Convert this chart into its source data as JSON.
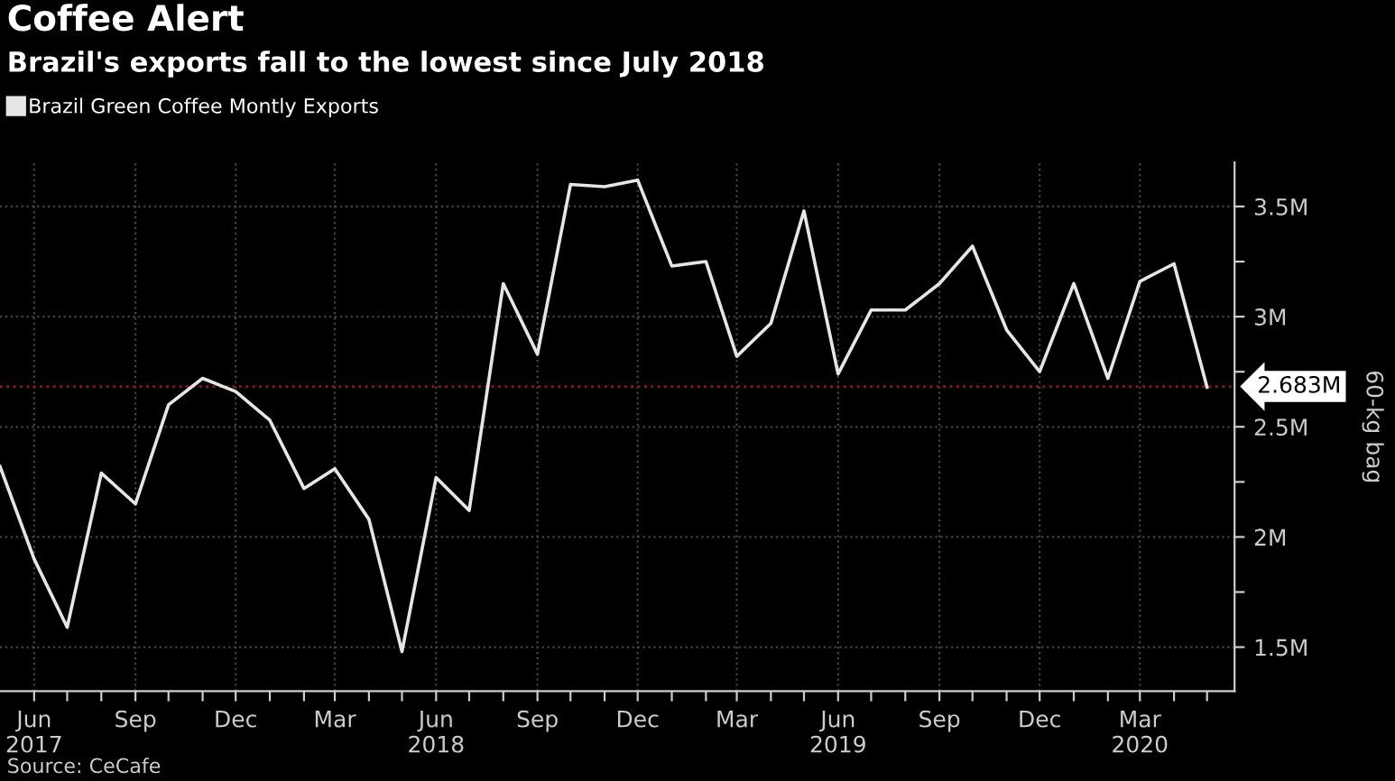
{
  "chart_data": {
    "type": "line",
    "title": "Coffee Alert",
    "subtitle": "Brazil's exports fall to the lowest since July 2018",
    "ylabel": "60-kg bag",
    "annotations": [
      "Source: CeCafe"
    ],
    "x": [
      "2017-05-01",
      "2017-06-01",
      "2017-07-01",
      "2017-08-01",
      "2017-09-01",
      "2017-10-01",
      "2017-11-01",
      "2017-12-01",
      "2018-01-01",
      "2018-02-01",
      "2018-03-01",
      "2018-04-01",
      "2018-05-01",
      "2018-06-01",
      "2018-07-01",
      "2018-08-01",
      "2018-09-01",
      "2018-10-01",
      "2018-11-01",
      "2018-12-01",
      "2019-01-01",
      "2019-02-01",
      "2019-03-01",
      "2019-04-01",
      "2019-05-01",
      "2019-06-01",
      "2019-07-01",
      "2019-08-01",
      "2019-09-01",
      "2019-10-01",
      "2019-11-01",
      "2019-12-01",
      "2020-01-01",
      "2020-02-01",
      "2020-03-01",
      "2020-04-01",
      "2020-05-01"
    ],
    "series": [
      {
        "name": "Brazil Green Coffee Montly Exports",
        "color": "#e6e6e6",
        "values": [
          2.32,
          1.9,
          1.59,
          2.29,
          2.15,
          2.6,
          2.72,
          2.66,
          2.53,
          2.22,
          2.31,
          2.08,
          1.48,
          2.27,
          2.12,
          3.15,
          2.83,
          3.6,
          3.59,
          3.62,
          3.23,
          3.25,
          2.82,
          2.97,
          3.48,
          2.74,
          3.03,
          3.03,
          3.15,
          3.32,
          2.94,
          2.75,
          3.15,
          2.72,
          3.16,
          3.24,
          2.68
        ]
      }
    ],
    "xlim": [
      "2017-05-01",
      "2020-05-26"
    ],
    "xticks": [
      {
        "value": "2017-06-01",
        "label": "Jun\n2017"
      },
      {
        "value": "2017-07-01",
        "label": null
      },
      {
        "value": "2017-08-01",
        "label": null
      },
      {
        "value": "2017-09-01",
        "label": "Sep"
      },
      {
        "value": "2017-10-01",
        "label": null
      },
      {
        "value": "2017-11-01",
        "label": null
      },
      {
        "value": "2017-12-01",
        "label": "Dec"
      },
      {
        "value": "2018-01-01",
        "label": null
      },
      {
        "value": "2018-02-01",
        "label": null
      },
      {
        "value": "2018-03-01",
        "label": "Mar"
      },
      {
        "value": "2018-04-01",
        "label": null
      },
      {
        "value": "2018-05-01",
        "label": null
      },
      {
        "value": "2018-06-01",
        "label": "Jun\n2018"
      },
      {
        "value": "2018-07-01",
        "label": null
      },
      {
        "value": "2018-08-01",
        "label": null
      },
      {
        "value": "2018-09-01",
        "label": "Sep"
      },
      {
        "value": "2018-10-01",
        "label": null
      },
      {
        "value": "2018-11-01",
        "label": null
      },
      {
        "value": "2018-12-01",
        "label": "Dec"
      },
      {
        "value": "2019-01-01",
        "label": null
      },
      {
        "value": "2019-02-01",
        "label": null
      },
      {
        "value": "2019-03-01",
        "label": "Mar"
      },
      {
        "value": "2019-04-01",
        "label": null
      },
      {
        "value": "2019-05-01",
        "label": null
      },
      {
        "value": "2019-06-01",
        "label": "Jun\n2019"
      },
      {
        "value": "2019-07-01",
        "label": null
      },
      {
        "value": "2019-08-01",
        "label": null
      },
      {
        "value": "2019-09-01",
        "label": "Sep"
      },
      {
        "value": "2019-10-01",
        "label": null
      },
      {
        "value": "2019-11-01",
        "label": null
      },
      {
        "value": "2019-12-01",
        "label": "Dec"
      },
      {
        "value": "2020-01-01",
        "label": null
      },
      {
        "value": "2020-02-01",
        "label": null
      },
      {
        "value": "2020-03-01",
        "label": "Mar\n2020"
      },
      {
        "value": "2020-04-01",
        "label": null
      },
      {
        "value": "2020-05-01",
        "label": null
      }
    ],
    "ylim": [
      1.3,
      3.7
    ],
    "yticks": [
      {
        "value": 1.5,
        "label": "1.5M"
      },
      {
        "value": 1.75,
        "label": null
      },
      {
        "value": 2,
        "label": "2M"
      },
      {
        "value": 2.25,
        "label": null
      },
      {
        "value": 2.5,
        "label": "2.5M"
      },
      {
        "value": 2.75,
        "label": null
      },
      {
        "value": 3,
        "label": "3M"
      },
      {
        "value": 3.25,
        "label": null
      },
      {
        "value": 3.5,
        "label": "3.5M"
      }
    ],
    "ref_lines": [
      {
        "axis": "y",
        "value": 2.683,
        "label": "2.683M",
        "color": "#8b1a1a",
        "line_style": "dotted"
      }
    ],
    "grid": true,
    "legend": "top left",
    "marker": "none",
    "line_style": "solid"
  }
}
